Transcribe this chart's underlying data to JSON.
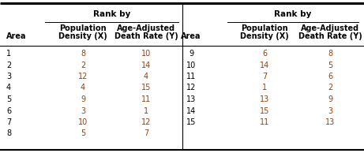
{
  "left_table": {
    "areas": [
      "1",
      "2",
      "3",
      "4",
      "5",
      "6",
      "7",
      "8"
    ],
    "pop_density": [
      "8",
      "2",
      "12",
      "4",
      "9",
      "3",
      "10",
      "5"
    ],
    "death_rate": [
      "10",
      "14",
      "4",
      "15",
      "11",
      "1",
      "12",
      "7"
    ]
  },
  "right_table": {
    "areas": [
      "9",
      "10",
      "11",
      "12",
      "13",
      "14",
      "15"
    ],
    "pop_density": [
      "6",
      "14",
      "7",
      "1",
      "13",
      "15",
      "11"
    ],
    "death_rate": [
      "8",
      "5",
      "6",
      "2",
      "9",
      "3",
      "13"
    ]
  },
  "rank_by": "Rank by",
  "col_area": "Area",
  "col_pop1": "Population",
  "col_pop2": "Density (X)",
  "col_age1": "Age-Adjusted",
  "col_age2": "Death Rate (Y)",
  "data_color": "#8B4513",
  "bold_color": "#000000",
  "bg_color": "#ffffff",
  "fontsize": 7.0
}
